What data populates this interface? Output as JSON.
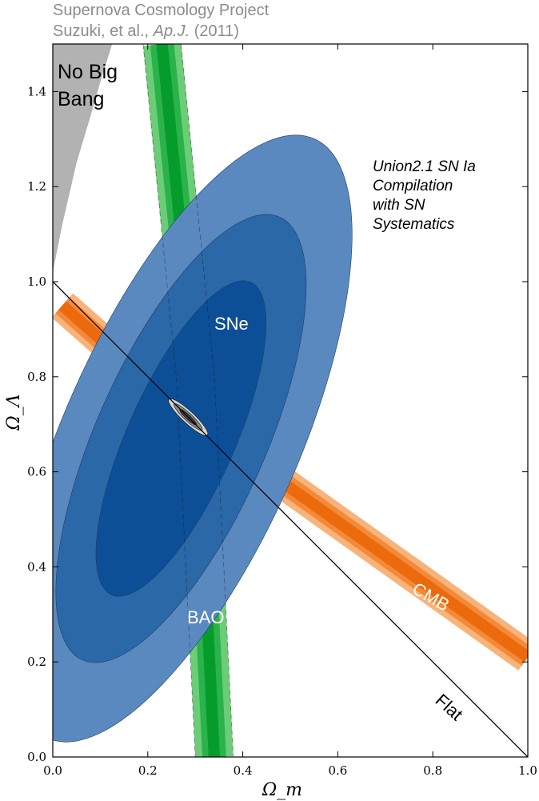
{
  "header": {
    "line1": "Supernova Cosmology Project",
    "line2_authors": "Suzuki, et al.,",
    "line2_journal": "Ap.J.",
    "line2_year": "(2011)"
  },
  "annotation": {
    "line1": "Union2.1 SN Ia",
    "line2": "Compilation",
    "line3": "with SN",
    "line4": "Systematics"
  },
  "region_labels": {
    "no_big_bang_1": "No Big",
    "no_big_bang_2": "Bang",
    "sne": "SNe",
    "bao": "BAO",
    "cmb": "CMB",
    "flat": "Flat"
  },
  "colors": {
    "sne": [
      "#5a89bf",
      "#2a68a8",
      "#0c4f96"
    ],
    "bao": [
      "#6ccc78",
      "#2ab34a",
      "#069c2c"
    ],
    "cmb": [
      "#f8b37a",
      "#f28a3a",
      "#ec6a0c"
    ],
    "no_big_bang": "#b2b2b2",
    "combined": [
      "#d4d4d4",
      "#8c8c8c",
      "#3a3a3a"
    ]
  },
  "chart_data": {
    "type": "contour",
    "xlabel": "Ω_m",
    "ylabel": "Ω_Λ",
    "xlim": [
      0.0,
      1.0
    ],
    "ylim": [
      0.0,
      1.5
    ],
    "xticks": [
      "0.0",
      "0.2",
      "0.4",
      "0.6",
      "0.8",
      "1.0"
    ],
    "yticks": [
      "0.0",
      "0.2",
      "0.4",
      "0.6",
      "0.8",
      "1.0",
      "1.2",
      "1.4"
    ],
    "grid": false,
    "flat_line": {
      "x": [
        0.0,
        1.0
      ],
      "y": [
        1.0,
        0.0
      ]
    },
    "sne_contours": {
      "center": [
        0.27,
        0.67
      ],
      "levels": [
        "68.3%",
        "95.4%",
        "99.7%"
      ],
      "semi_major": [
        0.36,
        0.51,
        0.69
      ],
      "semi_minor": [
        0.113,
        0.178,
        0.247
      ],
      "angle_deg": 66
    },
    "bao_band": {
      "centerline": [
        [
          0.23,
          1.5
        ],
        [
          0.3,
          0.8
        ],
        [
          0.34,
          0.0
        ]
      ],
      "half_widths": [
        0.012,
        0.025,
        0.04
      ]
    },
    "cmb_band": {
      "centerline": [
        [
          0.02,
          0.95
        ],
        [
          0.27,
          0.73
        ],
        [
          1.0,
          0.21
        ]
      ],
      "half_widths": [
        0.012,
        0.022,
        0.034
      ]
    },
    "combined_contour": {
      "center": [
        0.285,
        0.715
      ],
      "levels": [
        "68.3%",
        "95.4%",
        "99.7%"
      ],
      "semi_major": [
        0.021,
        0.035,
        0.048
      ],
      "semi_minor": [
        0.004,
        0.007,
        0.011
      ],
      "angle_deg": -43
    },
    "no_big_bang_boundary": [
      [
        0.0,
        1.02
      ],
      [
        0.02,
        1.12
      ],
      [
        0.05,
        1.25
      ],
      [
        0.08,
        1.35
      ],
      [
        0.1,
        1.42
      ],
      [
        0.125,
        1.5
      ]
    ]
  }
}
